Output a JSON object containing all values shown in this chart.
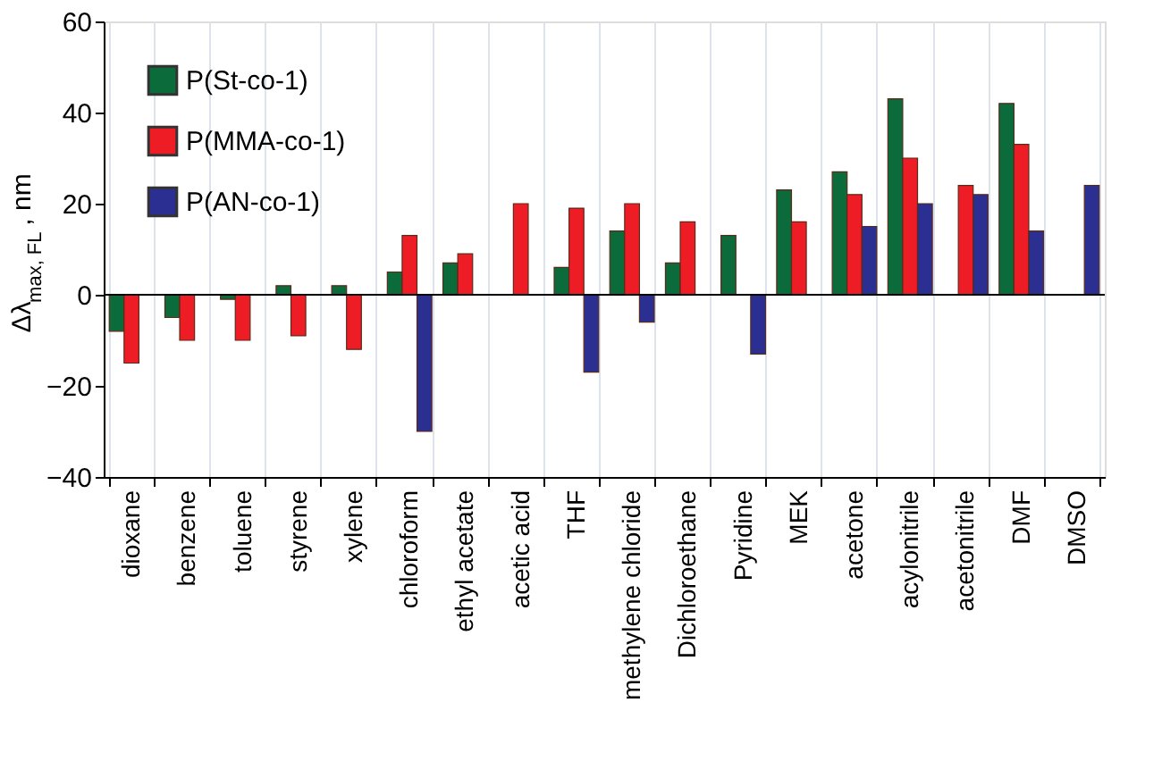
{
  "chart_data": {
    "type": "bar",
    "ylabel": "Δλ$_{max, FL}$, nm",
    "categories": [
      "dioxane",
      "benzene",
      "toluene",
      "styrene",
      "xylene",
      "chloroform",
      "ethyl acetate",
      "acetic acid",
      "THF",
      "methylene chloride",
      "Dichloroethane",
      "Pyridine",
      "MEK",
      "acetone",
      "acylonitrile",
      "acetonitrile",
      "DMF",
      "DMSO"
    ],
    "series": [
      {
        "name": "P(St-co-1)",
        "color": "#0b6b3a",
        "values": [
          -8,
          -5,
          -1,
          2,
          2,
          5,
          7,
          null,
          6,
          14,
          7,
          13,
          23,
          27,
          43,
          null,
          42,
          null
        ]
      },
      {
        "name": "P(MMA-co-1)",
        "color": "#ee1c25",
        "values": [
          -15,
          -10,
          -10,
          -9,
          -12,
          13,
          9,
          20,
          19,
          20,
          16,
          null,
          16,
          22,
          30,
          24,
          33,
          null
        ]
      },
      {
        "name": "P(AN-co-1)",
        "color": "#2b2f91",
        "values": [
          null,
          null,
          null,
          null,
          null,
          -30,
          null,
          null,
          -17,
          -6,
          null,
          -13,
          null,
          15,
          20,
          22,
          14,
          24
        ]
      }
    ],
    "ylim": [
      -40,
      60
    ],
    "yticks": [
      -40,
      -20,
      0,
      20,
      40,
      60
    ],
    "ref_lines": [
      {
        "axis": "y",
        "value": 0
      }
    ],
    "grid": "x",
    "legend": "top left"
  }
}
